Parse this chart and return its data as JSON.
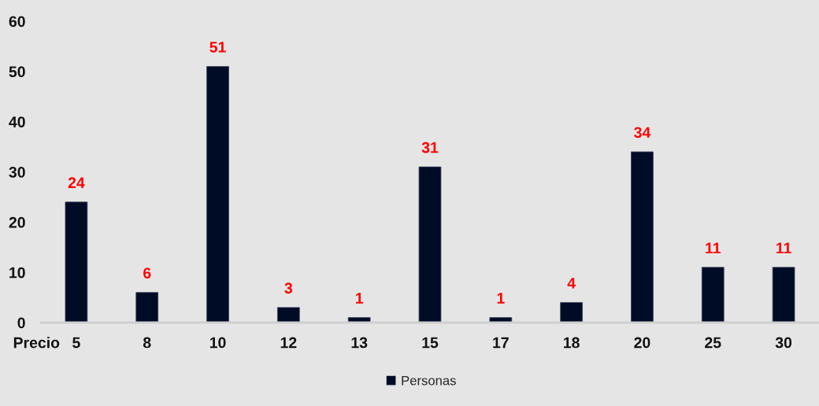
{
  "chart_data": {
    "type": "bar",
    "xlabel": "Precio",
    "categories": [
      "5",
      "8",
      "10",
      "12",
      "13",
      "15",
      "17",
      "18",
      "20",
      "25",
      "30"
    ],
    "series": [
      {
        "name": "Personas",
        "color": "#000b26",
        "values": [
          24,
          6,
          51,
          3,
          1,
          31,
          1,
          4,
          34,
          11,
          11
        ]
      }
    ],
    "ylim": [
      0,
      60
    ],
    "yticks": [
      0,
      10,
      20,
      30,
      40,
      50,
      60
    ],
    "legend": "bottom",
    "data_labels": true
  }
}
